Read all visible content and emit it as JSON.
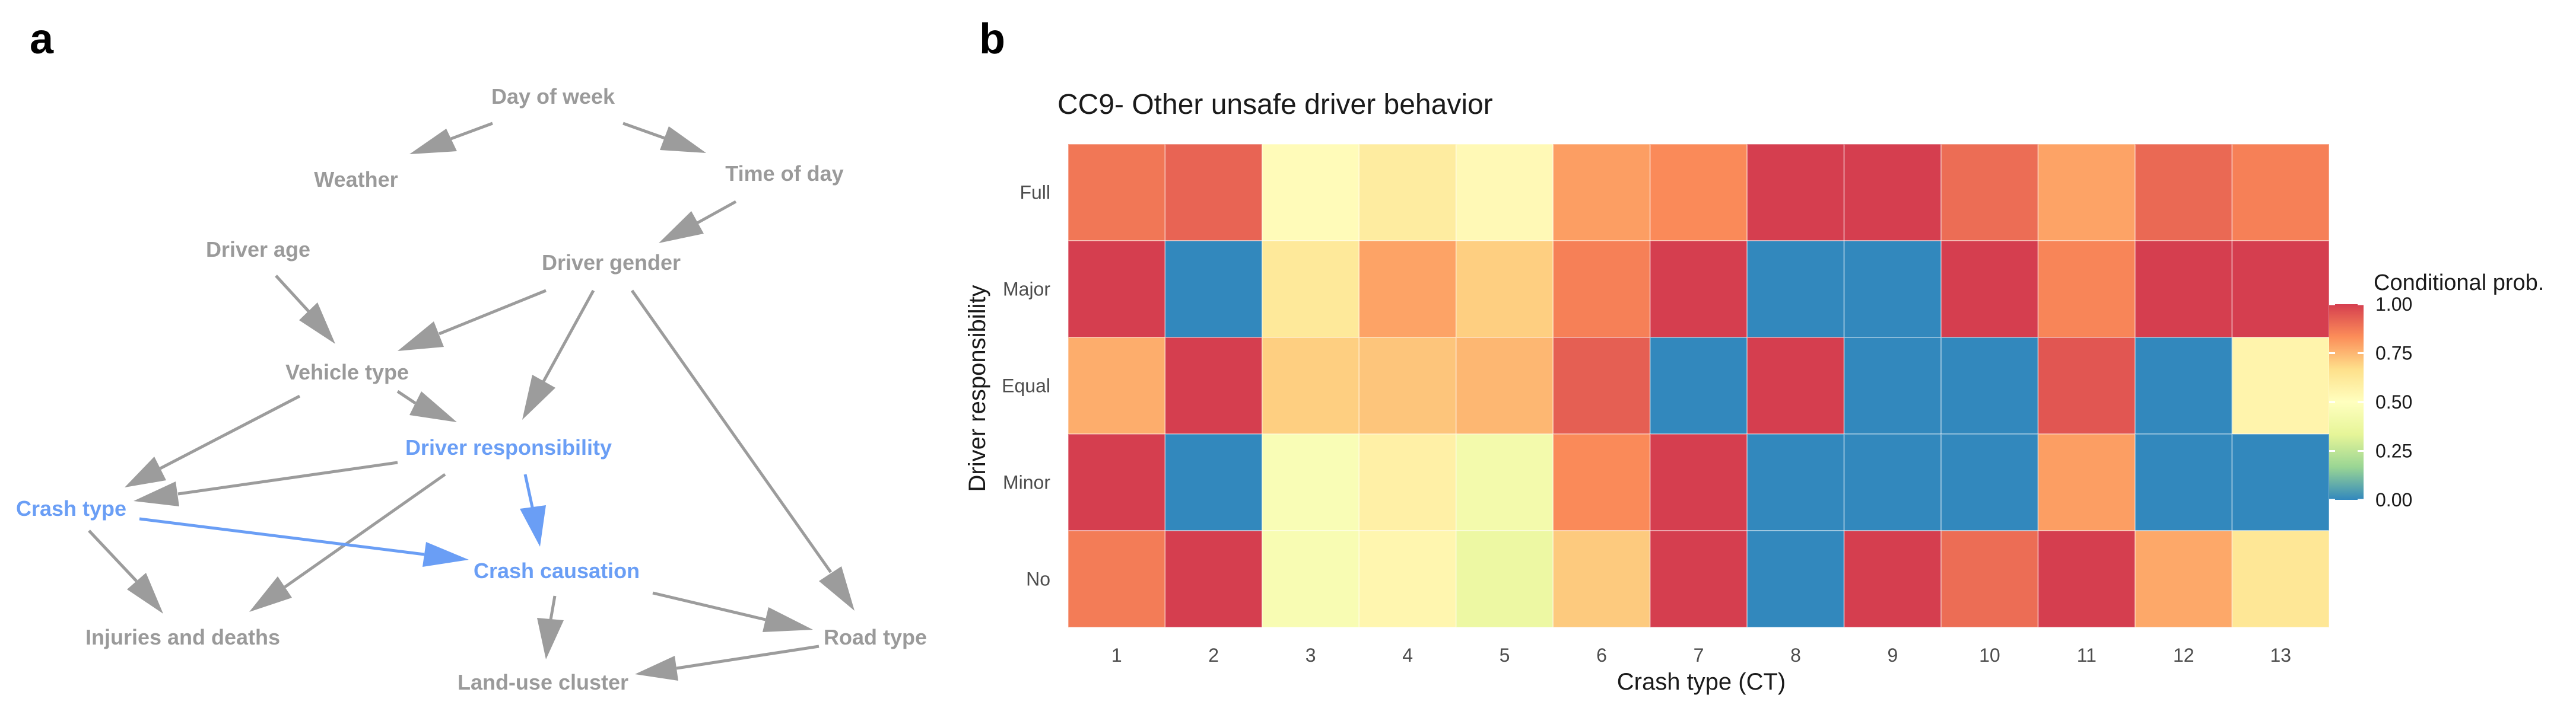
{
  "panel_a": {
    "label": "a",
    "nodes": {
      "day_of_week": "Day of week",
      "weather": "Weather",
      "time_of_day": "Time of day",
      "driver_age": "Driver age",
      "driver_gender": "Driver gender",
      "vehicle_type": "Vehicle type",
      "driver_responsibility": "Driver responsibility",
      "crash_type": "Crash type",
      "crash_causation": "Crash causation",
      "injuries_and_deaths": "Injuries and deaths",
      "road_type": "Road type",
      "land_use_cluster": "Land-use cluster"
    },
    "colors": {
      "node": "#9a9a9a",
      "highlight": "#6a9ef5"
    }
  },
  "panel_b": {
    "label": "b"
  },
  "chart_data": {
    "type": "heatmap",
    "title": "CC9- Other unsafe driver behavior",
    "xlabel": "Crash type (CT)",
    "ylabel": "Driver responsibility",
    "x_categories": [
      "1",
      "2",
      "3",
      "4",
      "5",
      "6",
      "7",
      "8",
      "9",
      "10",
      "11",
      "12",
      "13"
    ],
    "y_categories": [
      "Full",
      "Major",
      "Equal",
      "Minor",
      "No"
    ],
    "values": [
      [
        0.88,
        0.92,
        0.52,
        0.6,
        0.53,
        0.8,
        0.84,
        1.0,
        1.0,
        0.9,
        0.79,
        0.91,
        0.86
      ],
      [
        1.0,
        0.0,
        0.62,
        0.79,
        0.7,
        0.86,
        1.0,
        0.0,
        0.0,
        1.0,
        0.85,
        1.0,
        1.0
      ],
      [
        0.77,
        1.0,
        0.7,
        0.72,
        0.75,
        0.93,
        0.0,
        1.0,
        0.0,
        0.0,
        0.95,
        0.0,
        0.56
      ],
      [
        1.0,
        0.0,
        0.46,
        0.58,
        0.42,
        0.84,
        1.0,
        0.0,
        0.0,
        0.0,
        0.8,
        0.0,
        0.0
      ],
      [
        0.87,
        1.0,
        0.45,
        0.55,
        0.38,
        0.71,
        1.0,
        0.0,
        1.0,
        0.9,
        1.0,
        0.78,
        0.63
      ]
    ],
    "legend": {
      "title": "Conditional prob.",
      "ticks": [
        "1.00",
        "0.75",
        "0.50",
        "0.25",
        "0.00"
      ],
      "range": [
        0,
        1
      ],
      "colors": [
        "#3288bd",
        "#99d594",
        "#e6f598",
        "#ffffbf",
        "#fee08b",
        "#fc8d59",
        "#d53e4f"
      ]
    }
  }
}
